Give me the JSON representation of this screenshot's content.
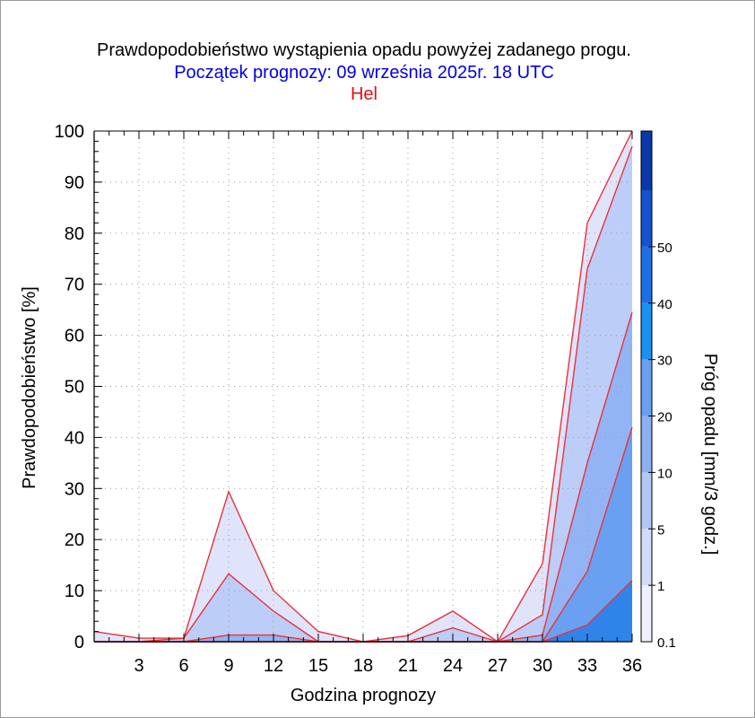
{
  "chart_data": {
    "type": "area",
    "title": "Prawdopodobieństwo wystąpienia opadu powyżej zadanego progu.",
    "subtitle": "Początek prognozy: 09 września 2025r. 18 UTC",
    "location": "Hel",
    "xlabel": "Godzina prognozy",
    "ylabel": "Prawdopodobieństwo [%]",
    "colorbar_label": "Próg opadu [mm/3 godz.]",
    "xlim": [
      0,
      36
    ],
    "ylim": [
      0,
      100
    ],
    "x_ticks": [
      3,
      6,
      9,
      12,
      15,
      18,
      21,
      24,
      27,
      30,
      33,
      36
    ],
    "y_ticks": [
      0,
      10,
      20,
      30,
      40,
      50,
      60,
      70,
      80,
      90,
      100
    ],
    "x": [
      0,
      3,
      6,
      9,
      12,
      15,
      18,
      21,
      24,
      27,
      30,
      33,
      36
    ],
    "series": [
      {
        "threshold": "0.1",
        "color": "#dfe4fb",
        "values": [
          2,
          0.7,
          0.7,
          29.4,
          10,
          2,
          0,
          1.2,
          6,
          0,
          15.3,
          82,
          100
        ]
      },
      {
        "threshold": "1",
        "color": "#bccdf7",
        "values": [
          0,
          0,
          0.7,
          13.3,
          6,
          0,
          0,
          0,
          2.7,
          0,
          5.3,
          73,
          97
        ]
      },
      {
        "threshold": "5",
        "color": "#93b4f4",
        "values": [
          0,
          0,
          0,
          1.3,
          1.3,
          0,
          0,
          0,
          0,
          0,
          1.3,
          35,
          64.5
        ]
      },
      {
        "threshold": "10",
        "color": "#6aa0f2",
        "values": [
          0,
          0,
          0,
          0,
          0,
          0,
          0,
          0,
          0,
          0,
          0,
          13.8,
          42
        ]
      },
      {
        "threshold": "20",
        "color": "#2f84ea",
        "values": [
          0,
          0,
          0,
          0,
          0,
          0,
          0,
          0,
          0,
          0,
          0,
          3.3,
          12
        ]
      }
    ],
    "colorbar": {
      "labels": [
        "0.1",
        "1",
        "5",
        "10",
        "20",
        "30",
        "40",
        "50"
      ],
      "colors": [
        "#eef0fd",
        "#d2dbf9",
        "#b2c7f6",
        "#8db0f3",
        "#6aa0f2",
        "#1a91f0",
        "#1d6fe6",
        "#1552cf",
        "#0b38a8"
      ]
    },
    "colors": {
      "title": "#000000",
      "subtitle": "#0000e0",
      "location": "#e01010",
      "outline": "#e8323c",
      "grid": "#9a9a9a"
    }
  }
}
